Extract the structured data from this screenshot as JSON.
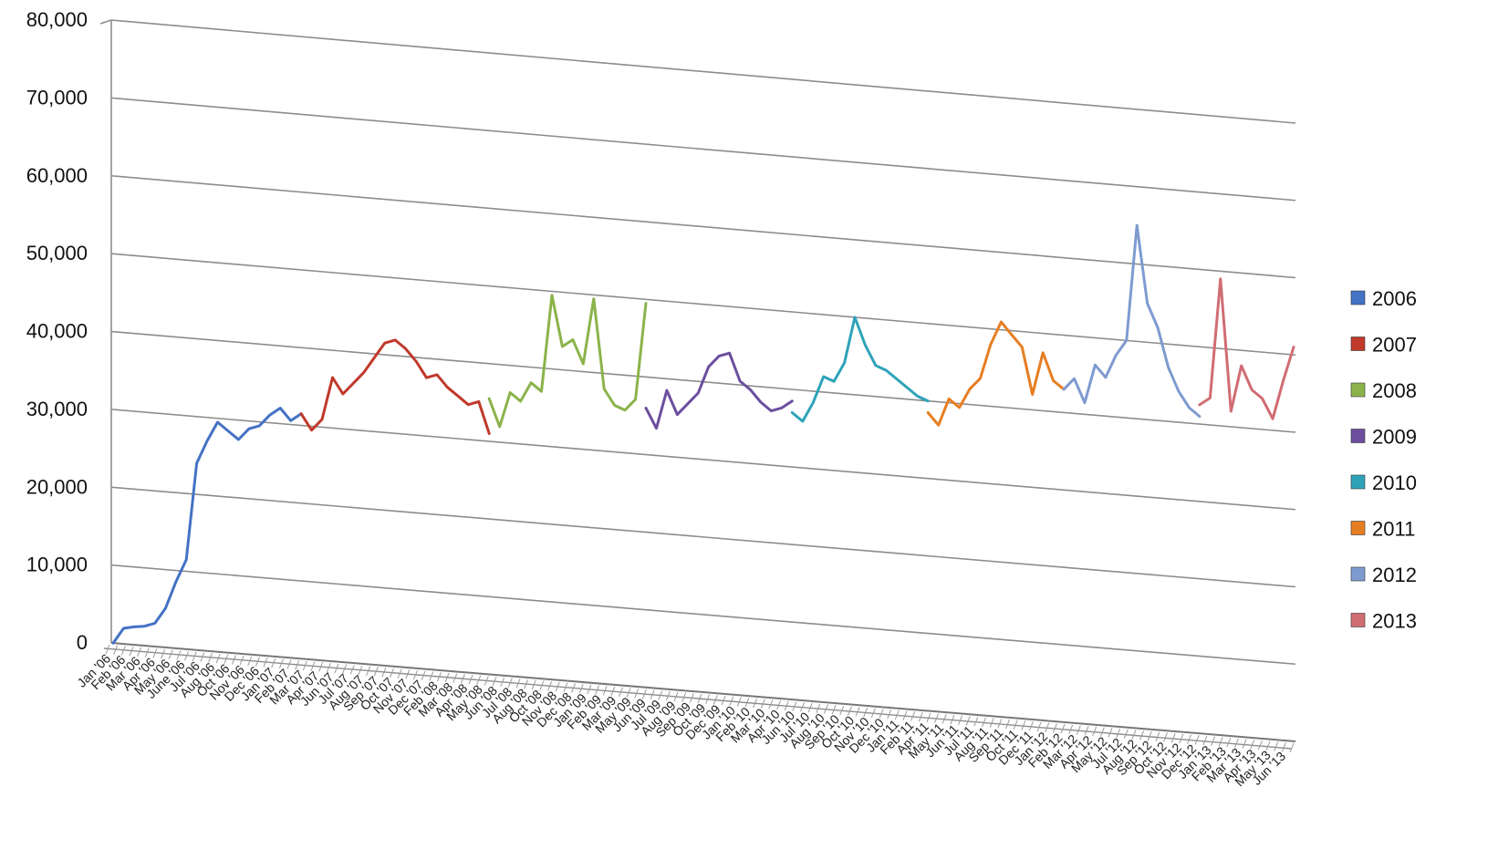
{
  "chart_data": {
    "type": "line",
    "title": "",
    "xlabel": "",
    "ylabel": "",
    "ylim": [
      0,
      80000
    ],
    "yticks": [
      "0",
      "10,000",
      "20,000",
      "30,000",
      "40,000",
      "50,000",
      "60,000",
      "70,000",
      "80,000"
    ],
    "grid": true,
    "legend_position": "right",
    "x_range": [
      "Jan '06",
      "Jun '13"
    ],
    "x_tick_labels": [
      "Jan '06",
      "Feb '06",
      "Mar '06",
      "Apr '06",
      "May '06",
      "June '06",
      "Jul '06",
      "Aug '06",
      "Oct '06",
      "Nov '06",
      "Dec '06",
      "Jan '07",
      "Feb '07",
      "Mar '07",
      "Apr '07",
      "Jun '07",
      "Jul '07",
      "Aug '07",
      "Sep '07",
      "Oct '07",
      "Nov '07",
      "Dec '07",
      "Feb '08",
      "Mar '08",
      "Apr '08",
      "May '08",
      "Jun '08",
      "Jul '08",
      "Aug '08",
      "Oct '08",
      "Nov '08",
      "Dec '08",
      "Jan '09",
      "Feb '09",
      "Mar '09",
      "May '09",
      "Jun '09",
      "Jul '09",
      "Aug '09",
      "Sep '09",
      "Oct '09",
      "Dec '09",
      "Jan '10",
      "Feb '10",
      "Mar '10",
      "Apr '10",
      "Jun '10",
      "Jul '10",
      "Aug '10",
      "Sep '10",
      "Oct '10",
      "Nov '10",
      "Dec '10",
      "Jan '11",
      "Feb '11",
      "Apr '11",
      "May '11",
      "Jun '11",
      "Jul '11",
      "Aug '11",
      "Sep '11",
      "Oct '11",
      "Dec '11",
      "Jan '12",
      "Feb '12",
      "Mar '12",
      "Apr '12",
      "May '12",
      "Jul '12",
      "Aug '12",
      "Sep '12",
      "Oct '12",
      "Nov '12",
      "Dec '12",
      "Jan '13",
      "Feb '13",
      "Mar '13",
      "Apr '13",
      "May '13",
      "Jun '13"
    ],
    "series": [
      {
        "name": "2006",
        "color": "#4472C4",
        "values": [
          0,
          2000,
          2300,
          2500,
          3000,
          5000,
          8500,
          11500,
          24000,
          27000,
          29500,
          28500,
          27500,
          29000,
          29500,
          31000,
          32000,
          30500,
          31500
        ]
      },
      {
        "name": "2007",
        "color": "#C0392B",
        "values": [
          31500,
          29500,
          31000,
          36500,
          34500,
          36000,
          37500,
          39500,
          41500,
          42000,
          41000,
          39500,
          37500,
          38000,
          36500,
          35500,
          34500,
          35000,
          31000
        ]
      },
      {
        "name": "2008",
        "color": "#8BB34A",
        "values": [
          35500,
          32000,
          36500,
          35500,
          38000,
          37000,
          49500,
          43000,
          44000,
          41000,
          49500,
          38000,
          36000,
          35500,
          37000,
          49500
        ]
      },
      {
        "name": "2009",
        "color": "#6B4F9E",
        "values": [
          36000,
          33500,
          38500,
          35500,
          37000,
          38500,
          42000,
          43500,
          44000,
          40500,
          39500,
          38000,
          37000,
          37500,
          38500
        ]
      },
      {
        "name": "2010",
        "color": "#2EA3B8",
        "values": [
          37000,
          36000,
          38500,
          42000,
          41500,
          44000,
          50000,
          46500,
          44000,
          43500,
          42500,
          41500,
          40500,
          40000
        ]
      },
      {
        "name": "2011",
        "color": "#E67E22",
        "values": [
          38500,
          37000,
          40500,
          39500,
          42000,
          43500,
          48000,
          51000,
          49500,
          48000,
          42000,
          47500,
          44000,
          43000
        ]
      },
      {
        "name": "2012",
        "color": "#7E9BD0",
        "values": [
          43000,
          44500,
          41500,
          46500,
          45000,
          48000,
          50000,
          65000,
          55000,
          52000,
          47000,
          44000,
          42000,
          41000
        ]
      },
      {
        "name": "2013",
        "color": "#D06D73",
        "values": [
          42500,
          43500,
          59000,
          42000,
          48000,
          45000,
          44000,
          41500,
          46500,
          51000
        ]
      }
    ]
  }
}
